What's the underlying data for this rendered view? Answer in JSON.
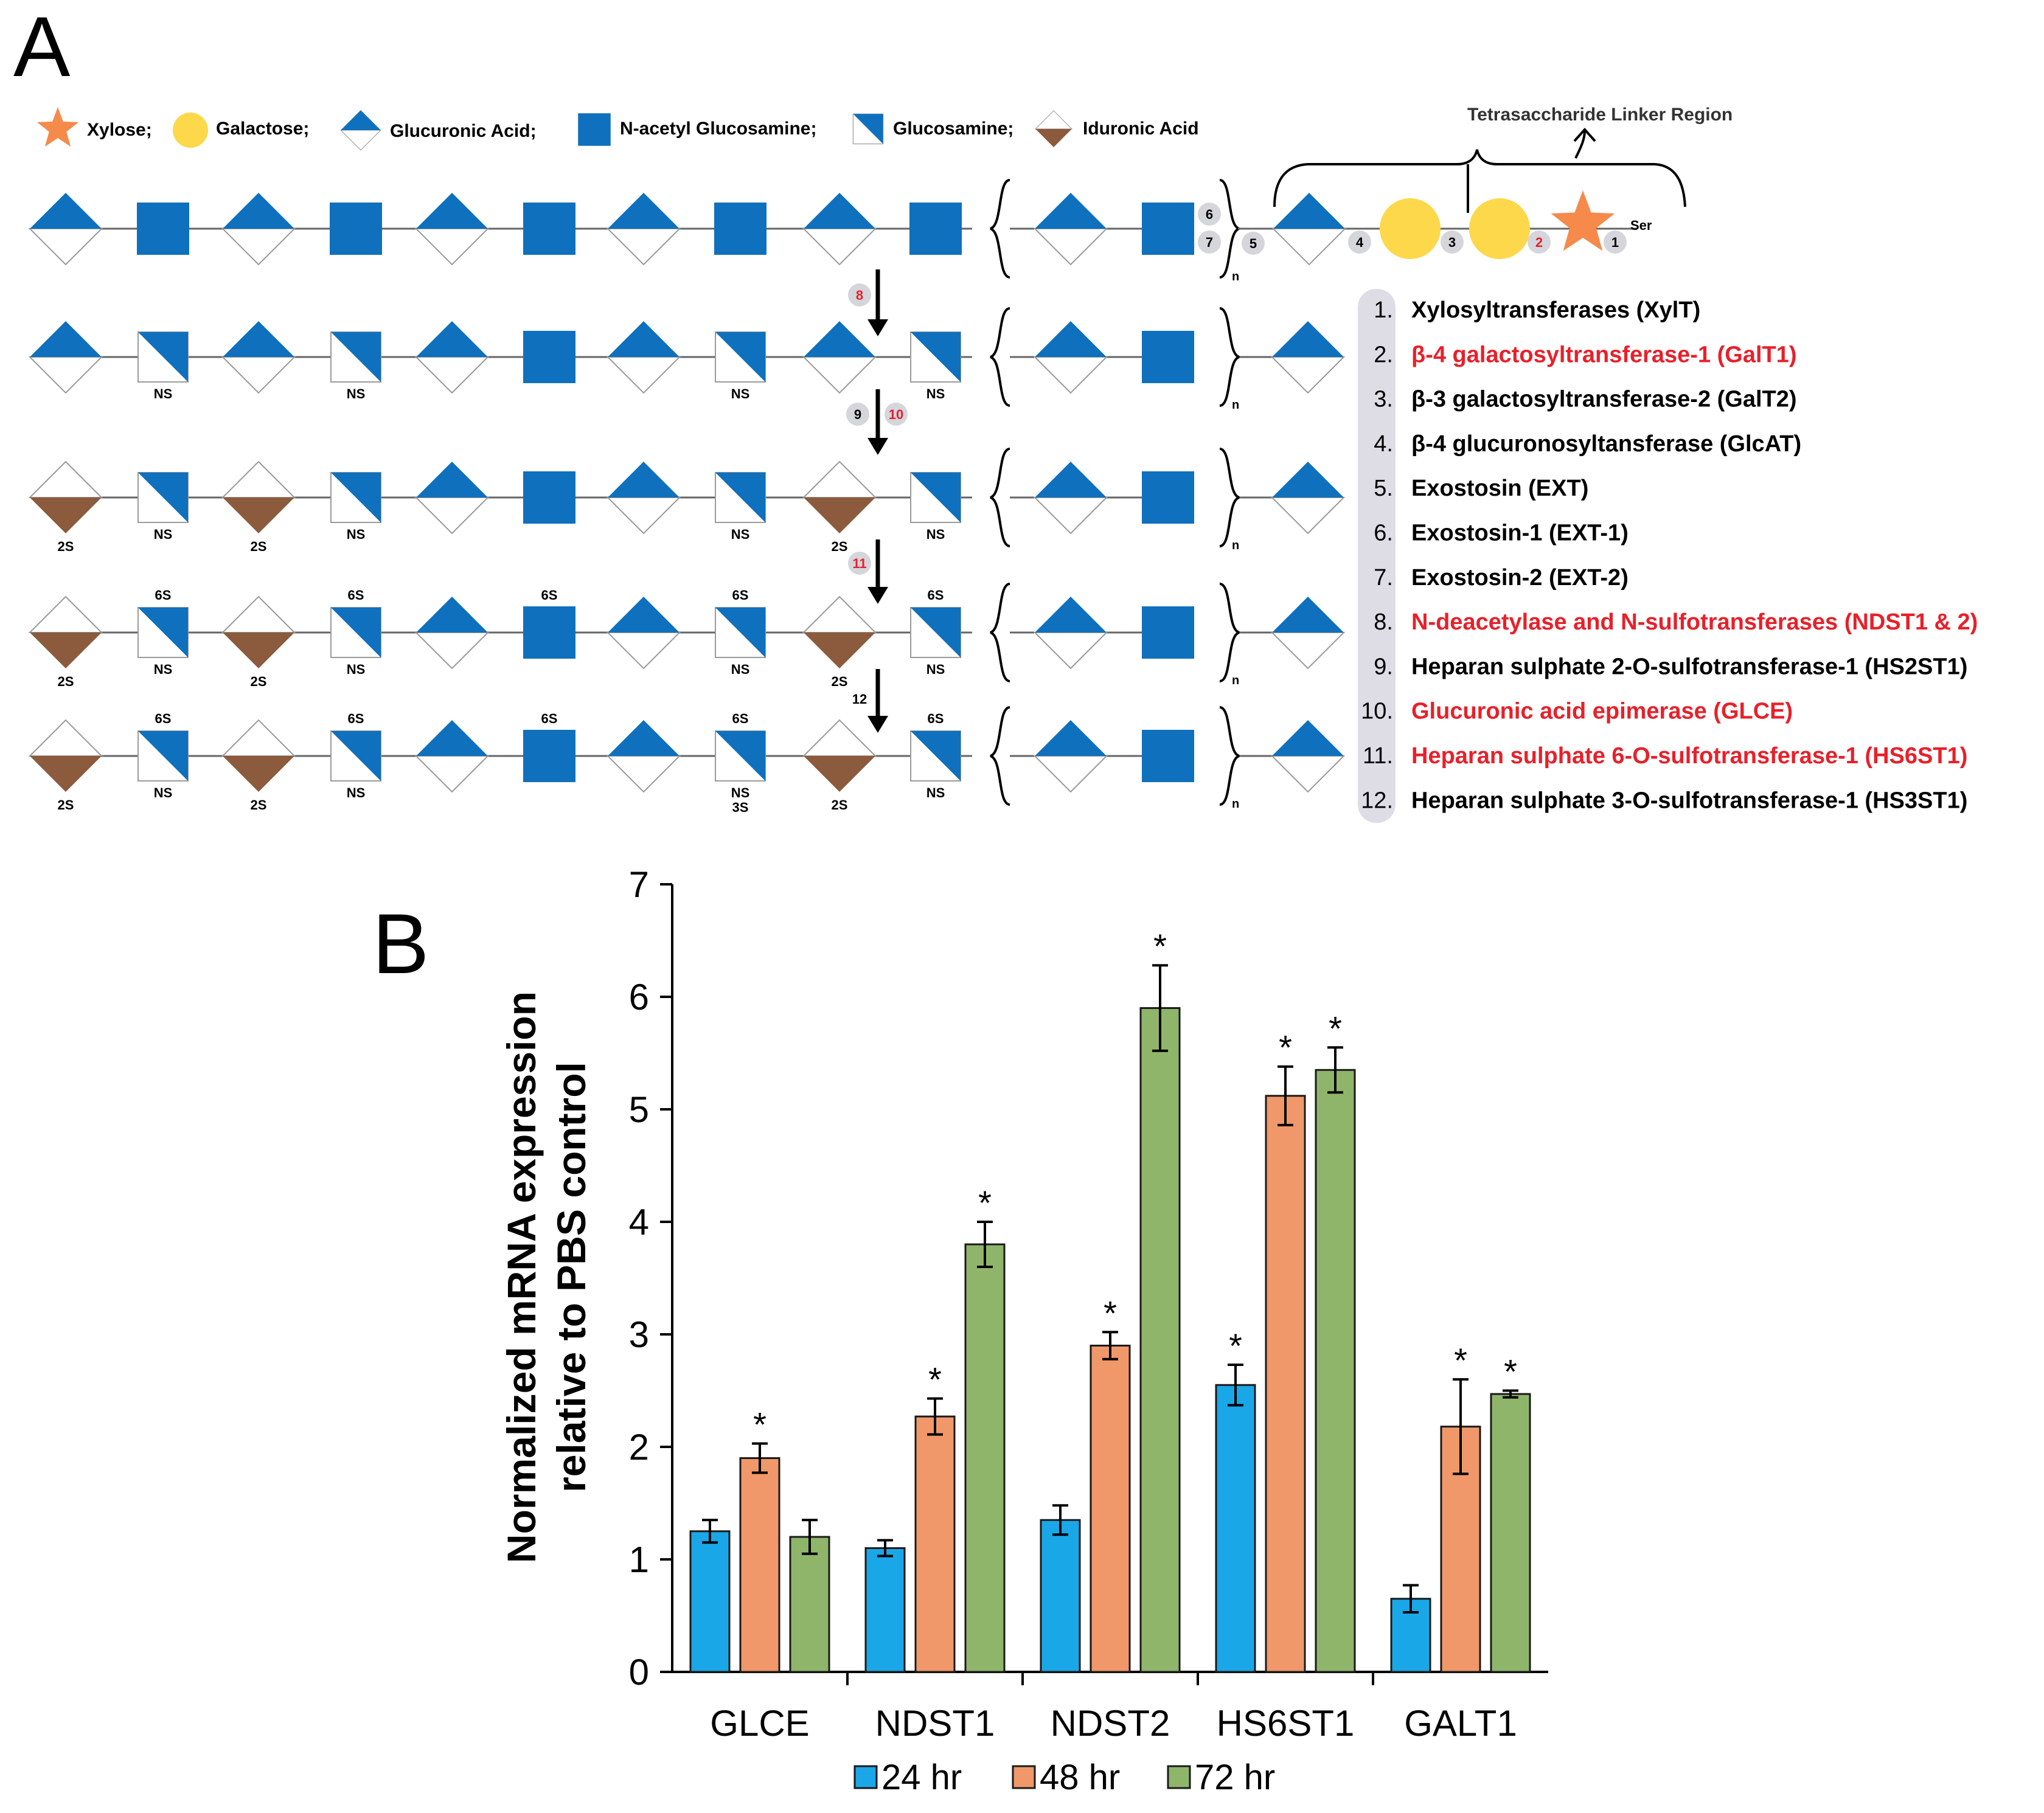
{
  "panel_a": {
    "label": "A",
    "legend": [
      {
        "key": "xylose",
        "label": "Xylose;"
      },
      {
        "key": "galactose",
        "label": "Galactose;"
      },
      {
        "key": "glucuronic",
        "label": "Glucuronic  Acid;"
      },
      {
        "key": "glcnac",
        "label": "N-acetyl Glucosamine;"
      },
      {
        "key": "glucosamine",
        "label": "Glucosamine;"
      },
      {
        "key": "iduronic",
        "label": "Iduronic Acid"
      }
    ],
    "linker_label": "Tetrasaccharide Linker Region",
    "ser_label": "Ser",
    "repeat_label": "n",
    "mods": {
      "ns": "NS",
      "s2": "2S",
      "s6": "6S",
      "s3": "3S"
    },
    "step_labels": [
      "1",
      "2",
      "3",
      "4",
      "5",
      "6",
      "7",
      "8",
      "9",
      "10",
      "11",
      "12"
    ],
    "enzymes": [
      {
        "num": "1.",
        "name": "Xylosyltransferases (XylT)",
        "color": "#000000"
      },
      {
        "num": "2.",
        "name": "β-4 galactosyltransferase-1 (GalT1)",
        "color": "#e8202a"
      },
      {
        "num": "3.",
        "name": "β-3 galactosyltransferase-2 (GalT2)",
        "color": "#000000"
      },
      {
        "num": "4.",
        "name": "β-4 glucuronosyltansferase (GlcAT)",
        "color": "#000000"
      },
      {
        "num": "5.",
        "name": "Exostosin (EXT)",
        "color": "#000000"
      },
      {
        "num": "6.",
        "name": "Exostosin-1 (EXT-1)",
        "color": "#000000"
      },
      {
        "num": "7.",
        "name": "Exostosin-2 (EXT-2)",
        "color": "#000000"
      },
      {
        "num": "8.",
        "name": "N-deacetylase and N-sulfotransferases (NDST1 & 2)",
        "color": "#e8202a"
      },
      {
        "num": "9.",
        "name": "Heparan sulphate 2-O-sulfotransferase-1 (HS2ST1)",
        "color": "#000000"
      },
      {
        "num": "10.",
        "name": "Glucuronic acid epimerase (GLCE)",
        "color": "#e8202a"
      },
      {
        "num": "11.",
        "name": "Heparan sulphate 6-O-sulfotransferase-1 (HS6ST1)",
        "color": "#e8202a"
      },
      {
        "num": "12.",
        "name": "Heparan sulphate 3-O-sulfotransferase-1 (HS3ST1)",
        "color": "#000000"
      }
    ],
    "colors": {
      "blue": "#0f70bd",
      "brown": "#8c5a3c",
      "yellow": "#fdd84b",
      "orange": "#f58a4b",
      "badge": "#d5d5dc",
      "red": "#e8202a"
    }
  },
  "panel_b": {
    "label": "B",
    "significance_mark": "*"
  },
  "chart_data": {
    "type": "bar",
    "title": "",
    "xlabel": "",
    "ylabel": [
      "Normalized mRNA expression",
      "relative to PBS control"
    ],
    "ylim": [
      0,
      7
    ],
    "yticks": [
      "0",
      "1",
      "2",
      "3",
      "4",
      "5",
      "6",
      "7"
    ],
    "categories": [
      "GLCE",
      "NDST1",
      "NDST2",
      "HS6ST1",
      "GALT1"
    ],
    "series": [
      {
        "name": "24 hr",
        "color": "#1aa7e8",
        "values": [
          1.25,
          1.1,
          1.35,
          2.55,
          0.65
        ],
        "errors": [
          0.1,
          0.07,
          0.13,
          0.18,
          0.12
        ],
        "significant": [
          false,
          false,
          false,
          true,
          false
        ]
      },
      {
        "name": "48 hr",
        "color": "#f0986a",
        "values": [
          1.9,
          2.27,
          2.9,
          5.12,
          2.18
        ],
        "errors": [
          0.13,
          0.16,
          0.12,
          0.26,
          0.42
        ],
        "significant": [
          true,
          true,
          true,
          true,
          true
        ]
      },
      {
        "name": "72 hr",
        "color": "#8fb56b",
        "values": [
          1.2,
          3.8,
          5.9,
          5.35,
          2.47
        ],
        "errors": [
          0.15,
          0.2,
          0.38,
          0.2,
          0.03
        ],
        "significant": [
          false,
          true,
          true,
          true,
          true
        ]
      }
    ],
    "legend_position": "bottom",
    "grid": false
  }
}
